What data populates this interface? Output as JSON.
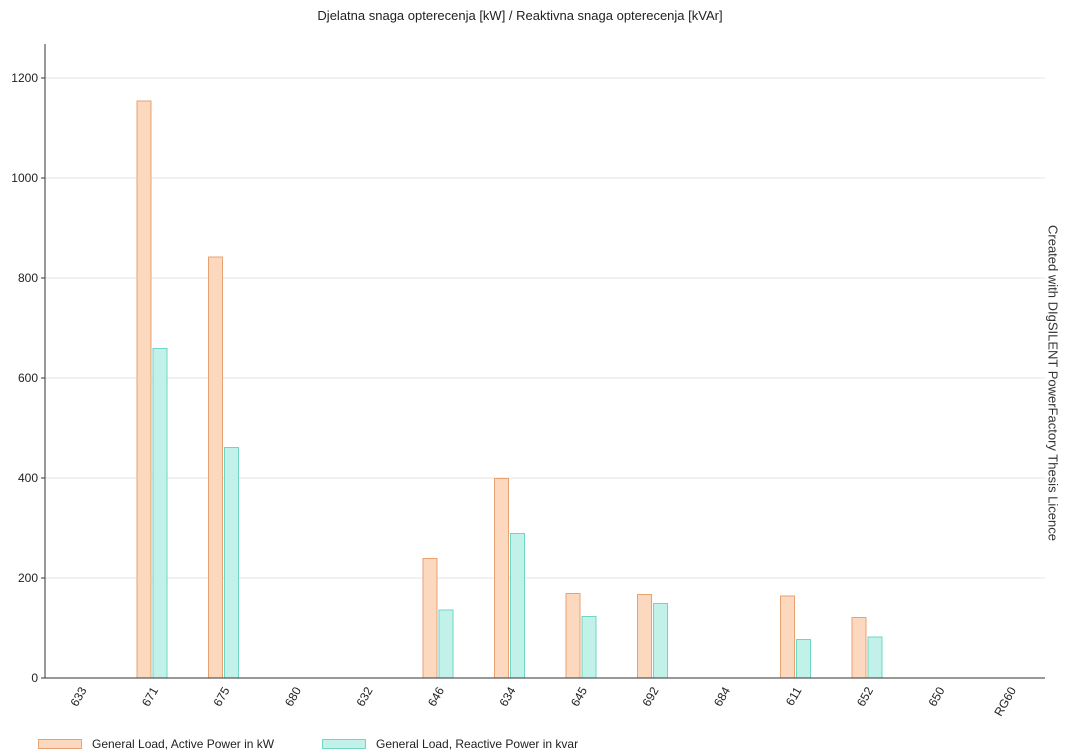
{
  "chart_data": {
    "type": "bar",
    "title": "Djelatna snaga opterecenja [kW] / Reaktivna snaga opterecenja [kVAr]",
    "watermark": "Created with DIgSILENT PowerFactory Thesis Licence",
    "categories": [
      "633",
      "671",
      "675",
      "680",
      "632",
      "646",
      "634",
      "645",
      "692",
      "684",
      "611",
      "652",
      "650",
      "RG60"
    ],
    "series": [
      {
        "name": "General Load, Active Power in kW",
        "fill": "#fcd8be",
        "stroke": "#e8a272",
        "values": [
          0,
          1155,
          843,
          0,
          0,
          240,
          400,
          170,
          168,
          0,
          165,
          122,
          0,
          0
        ]
      },
      {
        "name": "General Load, Reactive Power in kvar",
        "fill": "#c2f1e9",
        "stroke": "#6fd6c6",
        "values": [
          0,
          660,
          462,
          0,
          0,
          137,
          290,
          124,
          150,
          0,
          78,
          83,
          0,
          0
        ]
      }
    ],
    "ylim": [
      0,
      1260
    ],
    "yticks": [
      0,
      200,
      400,
      600,
      800,
      1000,
      1200
    ],
    "grid": true,
    "legend_position": "bottom-left"
  }
}
